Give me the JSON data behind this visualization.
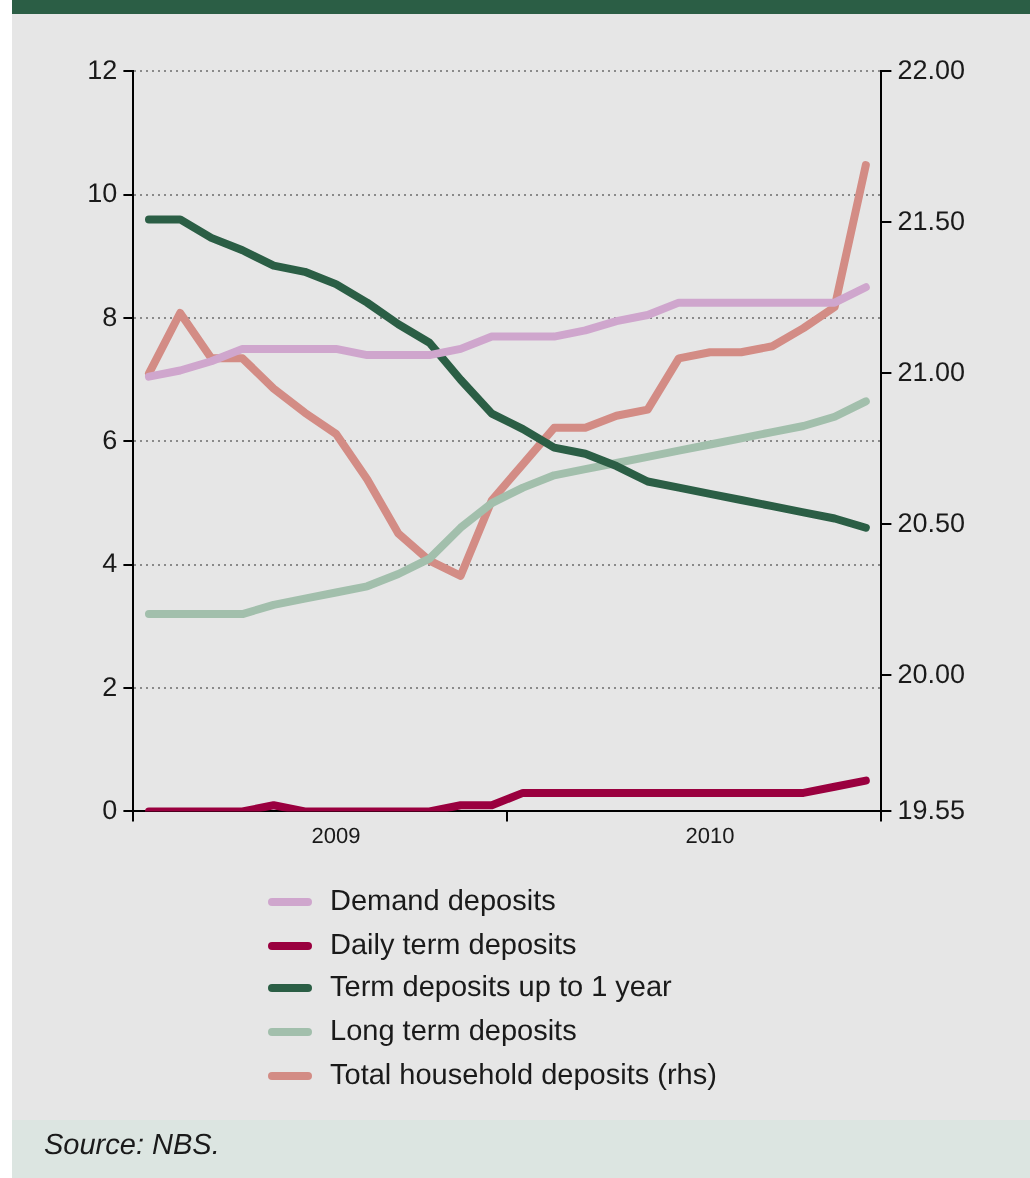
{
  "chart_data": {
    "type": "line",
    "categories": [
      null,
      null,
      null,
      null,
      null,
      null,
      "2009",
      null,
      null,
      null,
      null,
      null,
      null,
      null,
      null,
      null,
      null,
      null,
      "2010",
      null,
      null,
      null,
      null,
      null
    ],
    "series": [
      {
        "name": "Demand deposits",
        "color": "#cfa6cd",
        "values": [
          7.05,
          7.15,
          7.3,
          7.5,
          7.5,
          7.5,
          7.5,
          7.4,
          7.4,
          7.4,
          7.5,
          7.7,
          7.7,
          7.7,
          7.8,
          7.95,
          8.05,
          8.25,
          8.25,
          8.25,
          8.25,
          8.25,
          8.25,
          8.5
        ]
      },
      {
        "name": "Daily term deposits",
        "color": "#9a003f",
        "values": [
          0,
          0,
          0,
          0,
          0.1,
          0,
          0,
          0,
          0,
          0,
          0.1,
          0.1,
          0.3,
          0.3,
          0.3,
          0.3,
          0.3,
          0.3,
          0.3,
          0.3,
          0.3,
          0.3,
          0.4,
          0.5
        ]
      },
      {
        "name": "Term deposits up to 1 year",
        "color": "#2b5e45",
        "values": [
          9.6,
          9.6,
          9.3,
          9.1,
          8.85,
          8.75,
          8.55,
          8.25,
          7.9,
          7.6,
          7.0,
          6.45,
          6.2,
          5.9,
          5.8,
          5.6,
          5.35,
          5.25,
          5.15,
          5.05,
          4.95,
          4.85,
          4.75,
          4.6
        ]
      },
      {
        "name": "Long term deposits",
        "color": "#a2bfac",
        "values": [
          3.2,
          3.2,
          3.2,
          3.2,
          3.35,
          3.45,
          3.55,
          3.65,
          3.85,
          4.1,
          4.6,
          5.0,
          5.25,
          5.45,
          5.55,
          5.65,
          5.75,
          5.85,
          5.95,
          6.05,
          6.15,
          6.25,
          6.4,
          6.65
        ]
      },
      {
        "name": "Total household deposits (rhs)",
        "color": "#d38c85",
        "axis": "y2",
        "values": [
          21.0,
          21.2,
          21.05,
          21.05,
          20.95,
          20.87,
          20.8,
          20.65,
          20.47,
          20.38,
          20.33,
          20.58,
          20.7,
          20.82,
          20.82,
          20.86,
          20.88,
          21.05,
          21.07,
          21.07,
          21.09,
          21.15,
          21.22,
          21.69
        ]
      }
    ],
    "ylim": [
      0,
      12
    ],
    "yticks": [
      0,
      2,
      4,
      6,
      8,
      10,
      12
    ],
    "y2lim": [
      19.55,
      22
    ],
    "y2ticks": [
      {
        "value": 19.55,
        "label": "19.55"
      },
      {
        "value": 20,
        "label": "20.00"
      },
      {
        "value": 20.5,
        "label": "20.50"
      },
      {
        "value": 21,
        "label": "21.00"
      },
      {
        "value": 21.5,
        "label": "21.50"
      },
      {
        "value": 22,
        "label": "22.00"
      }
    ],
    "grid": "y",
    "legend": "bottom",
    "marker": "none",
    "line_style": "solid",
    "annotations": [
      "Source: NBS."
    ]
  }
}
